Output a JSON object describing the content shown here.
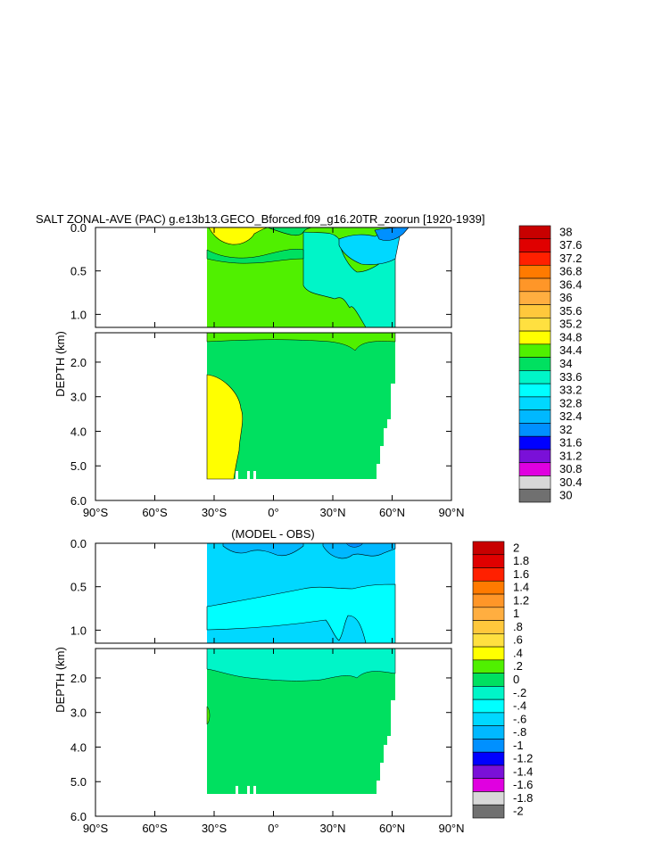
{
  "chart_data": [
    {
      "type": "heatmap",
      "title": "SALT ZONAL-AVE (PAC) g.e13b13.GECO_Bforced.f09_g16.20TR_zoorun [1920-1939]",
      "ylabel": "DEPTH (km)",
      "xlabel": "",
      "x_ticks": [
        "90°S",
        "60°S",
        "30°S",
        "0°",
        "30°N",
        "60°N",
        "90°N"
      ],
      "x_tick_values": [
        -90,
        -60,
        -30,
        0,
        30,
        60,
        90
      ],
      "xlim": [
        -90,
        90
      ],
      "upper_panel": {
        "ylim": [
          0,
          1.15
        ],
        "y_ticks": [
          "0.0",
          "0.5",
          "1.0"
        ],
        "y_tick_values": [
          0,
          0.5,
          1.0
        ]
      },
      "lower_panel": {
        "ylim": [
          1.15,
          6.0
        ],
        "y_ticks": [
          "2.0",
          "3.0",
          "4.0",
          "5.0",
          "6.0"
        ],
        "y_tick_values": [
          2,
          3,
          4,
          5,
          6
        ]
      },
      "colorbar": {
        "labels": [
          "38",
          "37.6",
          "37.2",
          "36.8",
          "36.4",
          "36",
          "35.6",
          "35.2",
          "34.8",
          "34.4",
          "34",
          "33.6",
          "33.2",
          "32.8",
          "32.4",
          "32",
          "31.6",
          "31.2",
          "30.8",
          "30.4",
          "30"
        ],
        "colors": [
          "#c80000",
          "#e00000",
          "#ff2000",
          "#ff7a00",
          "#ff9628",
          "#ffae40",
          "#ffc83c",
          "#ffe040",
          "#ffff00",
          "#50f000",
          "#00e060",
          "#00f5c8",
          "#00ffff",
          "#00d8ff",
          "#00b8ff",
          "#0090ff",
          "#0000ff",
          "#7a10d8",
          "#e000e0",
          "#d8d8d8",
          "#707070"
        ]
      },
      "regions": [
        {
          "name": "ocean_background_upper",
          "value": 34.6
        },
        {
          "name": "north_pacific_fresh",
          "value": 33.8
        },
        {
          "name": "subtropical_south_max",
          "value": 35.0
        },
        {
          "name": "deep_south_salty",
          "value": 34.9
        },
        {
          "name": "deep_ocean",
          "value": 34.6
        }
      ]
    },
    {
      "type": "heatmap",
      "title": "(MODEL - OBS)",
      "ylabel": "DEPTH (km)",
      "xlabel": "",
      "x_ticks": [
        "90°S",
        "60°S",
        "30°S",
        "0°",
        "30°N",
        "60°N",
        "90°N"
      ],
      "x_tick_values": [
        -90,
        -60,
        -30,
        0,
        30,
        60,
        90
      ],
      "xlim": [
        -90,
        90
      ],
      "upper_panel": {
        "ylim": [
          0,
          1.15
        ],
        "y_ticks": [
          "0.0",
          "0.5",
          "1.0"
        ],
        "y_tick_values": [
          0,
          0.5,
          1.0
        ]
      },
      "lower_panel": {
        "ylim": [
          1.15,
          6.0
        ],
        "y_ticks": [
          "2.0",
          "3.0",
          "4.0",
          "5.0",
          "6.0"
        ],
        "y_tick_values": [
          2,
          3,
          4,
          5,
          6
        ]
      },
      "colorbar": {
        "labels": [
          "2",
          "1.8",
          "1.6",
          "1.4",
          "1.2",
          "1",
          ".8",
          ".6",
          ".4",
          ".2",
          "0",
          "-.2",
          "-.4",
          "-.6",
          "-.8",
          "-1",
          "-1.2",
          "-1.4",
          "-1.6",
          "-1.8",
          "-2"
        ],
        "colors": [
          "#c80000",
          "#e00000",
          "#ff2000",
          "#ff7a00",
          "#ff9628",
          "#ffae40",
          "#ffc83c",
          "#ffe040",
          "#ffff00",
          "#50f000",
          "#00e060",
          "#00f5c8",
          "#00ffff",
          "#00d8ff",
          "#00b8ff",
          "#0090ff",
          "#0000ff",
          "#7a10d8",
          "#e000e0",
          "#d8d8d8",
          "#707070"
        ]
      },
      "regions": [
        {
          "name": "upper_fresh_bias",
          "value": -0.5
        },
        {
          "name": "upper_strong_fresh",
          "value": -0.7
        },
        {
          "name": "thermocline_bias",
          "value": -0.3
        },
        {
          "name": "deep_zero_bias",
          "value": 0.1
        }
      ]
    }
  ]
}
